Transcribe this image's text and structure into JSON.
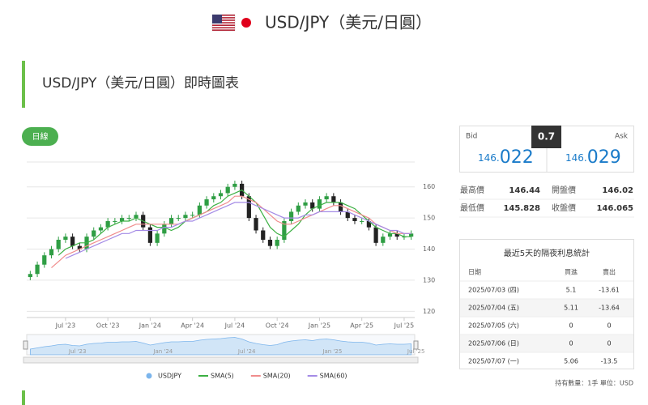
{
  "header": {
    "title": "USD/JPY（美元/日圓）"
  },
  "section": {
    "title": "USD/JPY（美元/日圓）即時圖表",
    "button": "日線"
  },
  "chart_data": {
    "type": "candlestick",
    "categories": [
      null,
      null,
      null,
      null,
      null,
      "Jul '23",
      null,
      null,
      null,
      null,
      null,
      "Oct '23",
      null,
      null,
      null,
      null,
      null,
      "Jan '24",
      null,
      null,
      null,
      null,
      null,
      "Apr '24",
      null,
      null,
      null,
      null,
      null,
      "Jul '24",
      null,
      null,
      null,
      null,
      null,
      "Oct '24",
      null,
      null,
      null,
      null,
      null,
      "Jan '25",
      null,
      null,
      null,
      null,
      null,
      "Apr '25",
      null,
      null,
      null,
      null,
      null,
      "Jul '25",
      null
    ],
    "ylim": [
      118,
      168
    ],
    "yticks": [
      120,
      130,
      140,
      150,
      160
    ],
    "grid": true,
    "series": [
      {
        "name": "USDJPY",
        "color": "#7cb5ec",
        "up_color": "#2f9e44",
        "down_color": "#222222",
        "open": [
          131,
          132,
          135,
          138,
          140,
          143,
          144,
          141,
          140,
          144,
          146,
          147,
          149,
          149,
          150,
          150,
          151,
          147,
          142,
          145,
          148,
          150,
          150,
          151,
          151,
          154,
          156,
          157,
          158,
          160,
          161,
          157,
          150,
          146,
          143,
          141,
          143,
          149,
          152,
          154,
          155,
          153,
          156,
          157,
          155,
          152,
          150,
          149,
          149,
          147,
          142,
          144,
          145,
          144,
          144
        ],
        "high": [
          133,
          136,
          139,
          141,
          144,
          145,
          145,
          142,
          145,
          147,
          148,
          150,
          150,
          151,
          151,
          152,
          152,
          148,
          146,
          149,
          151,
          151,
          152,
          152,
          155,
          157,
          158,
          159,
          161,
          162,
          162,
          158,
          151,
          147,
          144,
          144,
          150,
          153,
          155,
          156,
          156,
          157,
          158,
          158,
          156,
          153,
          151,
          150,
          150,
          148,
          145,
          146,
          146,
          145,
          146
        ],
        "low": [
          130,
          131,
          134,
          137,
          139,
          142,
          140,
          139,
          139,
          143,
          145,
          146,
          148,
          148,
          149,
          149,
          146,
          141,
          141,
          144,
          147,
          149,
          149,
          150,
          150,
          153,
          155,
          156,
          157,
          159,
          156,
          149,
          145,
          142,
          140,
          140,
          142,
          148,
          151,
          153,
          152,
          152,
          155,
          154,
          151,
          149,
          148,
          148,
          146,
          141,
          141,
          143,
          143,
          143,
          143
        ],
        "close": [
          132,
          135,
          138,
          140,
          143,
          144,
          141,
          140,
          144,
          146,
          147,
          149,
          149,
          150,
          150,
          151,
          147,
          142,
          145,
          148,
          150,
          150,
          151,
          151,
          154,
          156,
          157,
          158,
          160,
          161,
          157,
          150,
          146,
          143,
          141,
          143,
          149,
          152,
          154,
          155,
          153,
          156,
          157,
          155,
          152,
          150,
          149,
          149,
          147,
          142,
          144,
          145,
          144,
          144,
          145
        ]
      },
      {
        "name": "SMA(5)",
        "color": "#3cb043",
        "values": [
          null,
          null,
          null,
          null,
          138,
          140,
          141,
          142,
          142,
          143,
          145,
          147,
          148,
          149,
          149,
          150,
          149,
          148,
          147,
          147,
          146,
          147,
          149,
          150,
          151,
          152,
          154,
          155,
          157,
          158,
          159,
          157,
          155,
          151,
          147,
          145,
          144,
          146,
          148,
          151,
          153,
          154,
          155,
          155,
          155,
          154,
          153,
          151,
          149,
          147,
          146,
          145,
          145,
          144,
          144
        ]
      },
      {
        "name": "SMA(20)",
        "color": "#f08c8c",
        "values": [
          null,
          null,
          null,
          134,
          136,
          138,
          139,
          140,
          141,
          142,
          143,
          144,
          145,
          146,
          147,
          148,
          148,
          148,
          148,
          148,
          148,
          148,
          149,
          150,
          151,
          152,
          153,
          154,
          155,
          157,
          157,
          156,
          155,
          153,
          151,
          149,
          148,
          148,
          149,
          150,
          151,
          152,
          153,
          154,
          154,
          153,
          152,
          151,
          150,
          148,
          147,
          146,
          145,
          145,
          145
        ]
      },
      {
        "name": "SMA(60)",
        "color": "#a48be6",
        "values": [
          null,
          null,
          null,
          null,
          null,
          137,
          138,
          139,
          140,
          141,
          142,
          143,
          144,
          145,
          145,
          146,
          146,
          146,
          146,
          147,
          147,
          148,
          149,
          149,
          150,
          151,
          152,
          153,
          154,
          155,
          155,
          155,
          154,
          153,
          152,
          151,
          150,
          150,
          150,
          151,
          151,
          152,
          152,
          152,
          152,
          152,
          151,
          150,
          149,
          148,
          147,
          146,
          146,
          145,
          145
        ]
      }
    ]
  },
  "quote": {
    "bid_label": "Bid",
    "ask_label": "Ask",
    "spread": "0.7",
    "bid": {
      "int": "146.",
      "dec": "022"
    },
    "ask": {
      "int": "146.",
      "dec": "029"
    },
    "stats": [
      [
        "最高價",
        "146.44",
        "開盤價",
        "146.02"
      ],
      [
        "最低價",
        "145.828",
        "收盤價",
        "146.065"
      ]
    ]
  },
  "table": {
    "title": "最近5天的隔夜利息統計",
    "headers": [
      "日期",
      "買進",
      "賣出"
    ],
    "rows": [
      [
        "2025/07/03 (四)",
        "5.1",
        "-13.61"
      ],
      [
        "2025/07/04 (五)",
        "5.11",
        "-13.64"
      ],
      [
        "2025/07/05 (六)",
        "0",
        "0"
      ],
      [
        "2025/07/06 (日)",
        "0",
        "0"
      ],
      [
        "2025/07/07 (一)",
        "5.06",
        "-13.5"
      ]
    ],
    "footnote": "持有數量：1手 單位：USD"
  }
}
